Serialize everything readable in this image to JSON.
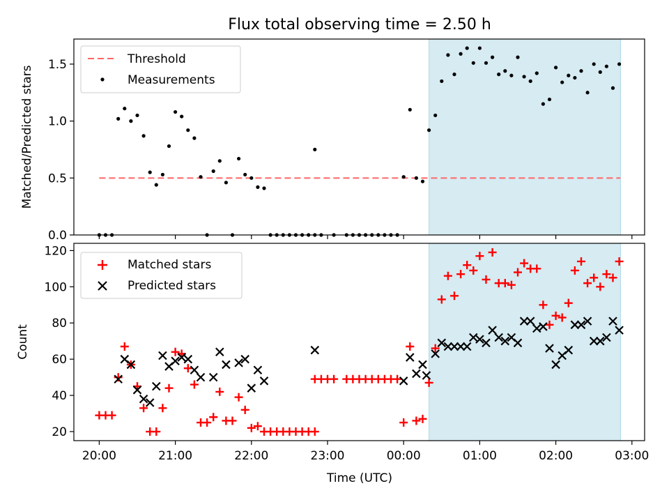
{
  "figure": {
    "title": "Flux total observing time = 2.50 h",
    "xlabel": "Time (UTC)",
    "xticks": [
      {
        "value": 0,
        "label": "20:00"
      },
      {
        "value": 60,
        "label": "21:00"
      },
      {
        "value": 120,
        "label": "22:00"
      },
      {
        "value": 180,
        "label": "23:00"
      },
      {
        "value": 240,
        "label": "00:00"
      },
      {
        "value": 300,
        "label": "01:00"
      },
      {
        "value": 360,
        "label": "02:00"
      },
      {
        "value": 420,
        "label": "03:00"
      }
    ],
    "xlim": [
      -20,
      430
    ],
    "highlight_span": [
      260,
      411
    ],
    "colors": {
      "highlight": "#add8e6",
      "threshold": "#ff6666",
      "measurements": "#000000",
      "matched": "#ff0000",
      "predicted": "#000000"
    }
  },
  "chart_data": [
    {
      "type": "scatter",
      "panel": "top",
      "ylabel": "Matched/Predicted stars",
      "ylim": [
        0,
        1.72
      ],
      "yticks": [
        {
          "value": 0,
          "label": "0.0"
        },
        {
          "value": 0.5,
          "label": "0.5"
        },
        {
          "value": 1.0,
          "label": "1.0"
        },
        {
          "value": 1.5,
          "label": "1.5"
        }
      ],
      "legend": {
        "position": "top-left",
        "entries": [
          "Threshold",
          "Measurements"
        ]
      },
      "threshold": {
        "name": "Threshold",
        "value": 0.5,
        "x_range": [
          0,
          411
        ]
      },
      "series": [
        {
          "name": "Measurements",
          "marker": "dot",
          "points": [
            [
              0,
              0
            ],
            [
              5,
              0
            ],
            [
              10,
              0
            ],
            [
              15,
              1.02
            ],
            [
              20,
              1.11
            ],
            [
              25,
              1.0
            ],
            [
              30,
              1.05
            ],
            [
              35,
              0.87
            ],
            [
              40,
              0.55
            ],
            [
              45,
              0.44
            ],
            [
              50,
              0.53
            ],
            [
              55,
              0.78
            ],
            [
              60,
              1.08
            ],
            [
              65,
              1.04
            ],
            [
              70,
              0.92
            ],
            [
              75,
              0.85
            ],
            [
              80,
              0.51
            ],
            [
              85,
              0.0
            ],
            [
              90,
              0.56
            ],
            [
              95,
              0.65
            ],
            [
              100,
              0.46
            ],
            [
              105,
              0.0
            ],
            [
              110,
              0.67
            ],
            [
              115,
              0.53
            ],
            [
              120,
              0.5
            ],
            [
              125,
              0.42
            ],
            [
              130,
              0.41
            ],
            [
              135,
              0
            ],
            [
              140,
              0
            ],
            [
              145,
              0
            ],
            [
              150,
              0
            ],
            [
              155,
              0
            ],
            [
              160,
              0
            ],
            [
              165,
              0
            ],
            [
              170,
              0
            ],
            [
              175,
              0
            ],
            [
              170,
              0.75
            ],
            [
              185,
              0
            ],
            [
              195,
              0
            ],
            [
              200,
              0
            ],
            [
              205,
              0
            ],
            [
              210,
              0
            ],
            [
              215,
              0
            ],
            [
              220,
              0
            ],
            [
              225,
              0
            ],
            [
              230,
              0
            ],
            [
              235,
              0
            ],
            [
              240,
              0.51
            ],
            [
              245,
              1.1
            ],
            [
              250,
              0.5
            ],
            [
              255,
              0.47
            ],
            [
              260,
              0.92
            ],
            [
              265,
              1.05
            ],
            [
              270,
              1.35
            ],
            [
              275,
              1.58
            ],
            [
              280,
              1.41
            ],
            [
              285,
              1.59
            ],
            [
              290,
              1.64
            ],
            [
              295,
              1.51
            ],
            [
              300,
              1.64
            ],
            [
              305,
              1.51
            ],
            [
              310,
              1.56
            ],
            [
              315,
              1.41
            ],
            [
              320,
              1.44
            ],
            [
              325,
              1.4
            ],
            [
              330,
              1.56
            ],
            [
              335,
              1.39
            ],
            [
              340,
              1.35
            ],
            [
              345,
              1.42
            ],
            [
              350,
              1.15
            ],
            [
              355,
              1.19
            ],
            [
              360,
              1.47
            ],
            [
              365,
              1.34
            ],
            [
              370,
              1.4
            ],
            [
              375,
              1.38
            ],
            [
              380,
              1.44
            ],
            [
              385,
              1.25
            ],
            [
              390,
              1.5
            ],
            [
              395,
              1.43
            ],
            [
              400,
              1.48
            ],
            [
              405,
              1.29
            ],
            [
              410,
              1.5
            ]
          ]
        }
      ]
    },
    {
      "type": "scatter",
      "panel": "bottom",
      "ylabel": "Count",
      "ylim": [
        15,
        124
      ],
      "yticks": [
        {
          "value": 20,
          "label": "20"
        },
        {
          "value": 40,
          "label": "40"
        },
        {
          "value": 60,
          "label": "60"
        },
        {
          "value": 80,
          "label": "80"
        },
        {
          "value": 100,
          "label": "100"
        },
        {
          "value": 120,
          "label": "120"
        }
      ],
      "legend": {
        "position": "top-left",
        "entries": [
          "Matched stars",
          "Predicted stars"
        ]
      },
      "series": [
        {
          "name": "Matched stars",
          "marker": "plus",
          "points": [
            [
              0,
              29
            ],
            [
              5,
              29
            ],
            [
              10,
              29
            ],
            [
              15,
              50
            ],
            [
              20,
              67
            ],
            [
              25,
              57
            ],
            [
              30,
              45
            ],
            [
              35,
              33
            ],
            [
              40,
              20
            ],
            [
              45,
              20
            ],
            [
              50,
              33
            ],
            [
              55,
              44
            ],
            [
              60,
              64
            ],
            [
              65,
              63
            ],
            [
              70,
              55
            ],
            [
              75,
              46
            ],
            [
              80,
              25
            ],
            [
              85,
              25
            ],
            [
              90,
              28
            ],
            [
              95,
              42
            ],
            [
              100,
              26
            ],
            [
              105,
              26
            ],
            [
              110,
              39
            ],
            [
              115,
              32
            ],
            [
              120,
              22
            ],
            [
              125,
              23
            ],
            [
              130,
              20
            ],
            [
              135,
              20
            ],
            [
              140,
              20
            ],
            [
              145,
              20
            ],
            [
              150,
              20
            ],
            [
              155,
              20
            ],
            [
              160,
              20
            ],
            [
              165,
              20
            ],
            [
              170,
              20
            ],
            [
              170,
              49
            ],
            [
              175,
              49
            ],
            [
              180,
              49
            ],
            [
              185,
              49
            ],
            [
              195,
              49
            ],
            [
              200,
              49
            ],
            [
              205,
              49
            ],
            [
              210,
              49
            ],
            [
              215,
              49
            ],
            [
              220,
              49
            ],
            [
              225,
              49
            ],
            [
              230,
              49
            ],
            [
              235,
              49
            ],
            [
              240,
              25
            ],
            [
              245,
              67
            ],
            [
              250,
              26
            ],
            [
              255,
              27
            ],
            [
              260,
              47
            ],
            [
              265,
              66
            ],
            [
              270,
              93
            ],
            [
              275,
              106
            ],
            [
              280,
              95
            ],
            [
              285,
              107
            ],
            [
              290,
              112
            ],
            [
              295,
              109
            ],
            [
              300,
              117
            ],
            [
              305,
              104
            ],
            [
              310,
              119
            ],
            [
              315,
              102
            ],
            [
              320,
              102
            ],
            [
              325,
              101
            ],
            [
              330,
              108
            ],
            [
              335,
              113
            ],
            [
              340,
              110
            ],
            [
              345,
              110
            ],
            [
              350,
              90
            ],
            [
              355,
              79
            ],
            [
              360,
              84
            ],
            [
              365,
              83
            ],
            [
              370,
              91
            ],
            [
              375,
              109
            ],
            [
              380,
              114
            ],
            [
              385,
              102
            ],
            [
              390,
              105
            ],
            [
              395,
              100
            ],
            [
              400,
              107
            ],
            [
              405,
              105
            ],
            [
              410,
              114
            ]
          ]
        },
        {
          "name": "Predicted stars",
          "marker": "x",
          "points": [
            [
              15,
              49
            ],
            [
              20,
              60
            ],
            [
              25,
              57
            ],
            [
              30,
              43
            ],
            [
              35,
              38
            ],
            [
              40,
              36
            ],
            [
              45,
              45
            ],
            [
              50,
              62
            ],
            [
              55,
              56
            ],
            [
              60,
              59
            ],
            [
              65,
              61
            ],
            [
              70,
              60
            ],
            [
              75,
              54
            ],
            [
              80,
              50
            ],
            [
              90,
              50
            ],
            [
              95,
              64
            ],
            [
              100,
              57
            ],
            [
              110,
              58
            ],
            [
              115,
              60
            ],
            [
              120,
              44
            ],
            [
              125,
              54
            ],
            [
              130,
              48
            ],
            [
              170,
              65
            ],
            [
              240,
              48
            ],
            [
              245,
              61
            ],
            [
              250,
              52
            ],
            [
              255,
              57
            ],
            [
              258,
              51
            ],
            [
              265,
              63
            ],
            [
              270,
              69
            ],
            [
              275,
              67
            ],
            [
              280,
              67
            ],
            [
              285,
              67
            ],
            [
              290,
              67
            ],
            [
              295,
              72
            ],
            [
              300,
              71
            ],
            [
              305,
              69
            ],
            [
              310,
              76
            ],
            [
              315,
              72
            ],
            [
              320,
              70
            ],
            [
              325,
              72
            ],
            [
              330,
              69
            ],
            [
              335,
              81
            ],
            [
              340,
              81
            ],
            [
              345,
              77
            ],
            [
              350,
              78
            ],
            [
              355,
              66
            ],
            [
              360,
              57
            ],
            [
              365,
              62
            ],
            [
              370,
              65
            ],
            [
              375,
              79
            ],
            [
              380,
              79
            ],
            [
              385,
              81
            ],
            [
              390,
              70
            ],
            [
              395,
              70
            ],
            [
              400,
              72
            ],
            [
              405,
              81
            ],
            [
              410,
              76
            ]
          ]
        }
      ]
    }
  ]
}
